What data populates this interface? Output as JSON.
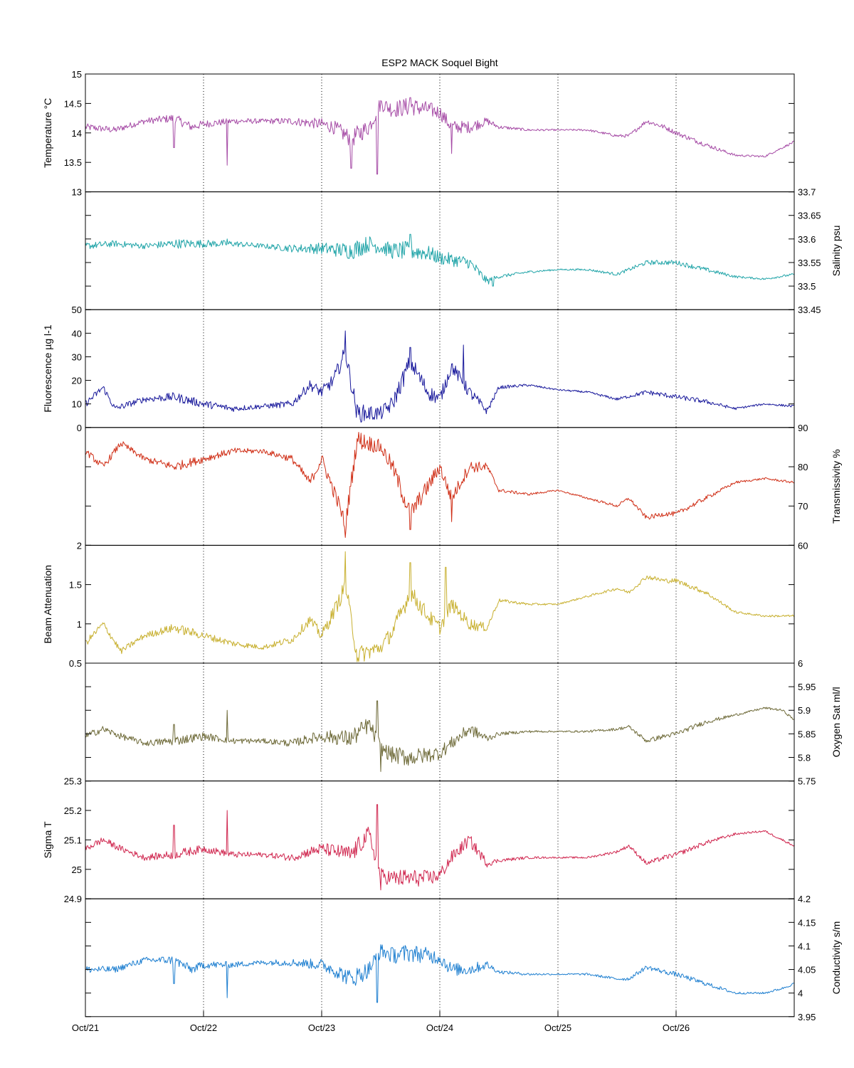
{
  "chart_data": {
    "title": "ESP2 MACK  Soquel Bight",
    "type": "line",
    "x_tick_labels": [
      "Oct/21",
      "Oct/22",
      "Oct/23",
      "Oct/24",
      "Oct/25",
      "Oct/26"
    ],
    "x_ticks_days": [
      21,
      22,
      23,
      24,
      25,
      26
    ],
    "xlim": [
      "2007-10-21",
      "2007-10-27"
    ],
    "grid": "vertical dotted lines at day ticks",
    "panels": [
      {
        "label": "Temperature °C",
        "axis_side": "left",
        "color": "#a64ca6",
        "ylim": [
          13,
          15
        ],
        "ticks": [
          13,
          13.5,
          14,
          14.5,
          15
        ],
        "tick_labels": [
          "13",
          "13.5",
          "14",
          "14.5",
          "15"
        ],
        "x_days": [
          21.0,
          21.25,
          21.5,
          21.75,
          21.9,
          22.0,
          22.25,
          22.5,
          22.75,
          23.0,
          23.1,
          23.25,
          23.4,
          23.5,
          23.6,
          23.75,
          23.9,
          24.0,
          24.1,
          24.25,
          24.4,
          24.5,
          24.75,
          25.0,
          25.25,
          25.5,
          25.6,
          25.75,
          25.9,
          26.0,
          26.25,
          26.5,
          26.75,
          26.9,
          27.0
        ],
        "values": [
          14.1,
          14.05,
          14.2,
          14.25,
          14.1,
          14.15,
          14.2,
          14.2,
          14.2,
          14.15,
          14.1,
          13.9,
          14.1,
          14.5,
          14.4,
          14.45,
          14.4,
          14.35,
          14.1,
          14.1,
          14.2,
          14.1,
          14.05,
          14.05,
          14.05,
          13.95,
          13.95,
          14.2,
          14.1,
          14.0,
          13.8,
          13.62,
          13.6,
          13.75,
          13.85
        ],
        "spikes": [
          [
            21.75,
            13.75
          ],
          [
            22.2,
            13.45
          ],
          [
            23.25,
            13.4
          ],
          [
            23.47,
            13.3
          ],
          [
            23.75,
            14.6
          ],
          [
            24.1,
            13.65
          ]
        ]
      },
      {
        "label": "Salinity psu",
        "axis_side": "right",
        "color": "#20a4a8",
        "ylim": [
          33.45,
          33.7
        ],
        "ticks": [
          33.45,
          33.5,
          33.55,
          33.6,
          33.65,
          33.7
        ],
        "tick_labels": [
          "33.45",
          "33.5",
          "33.55",
          "33.6",
          "33.65",
          "33.7"
        ],
        "x_days": [
          21.0,
          21.25,
          21.5,
          21.75,
          22.0,
          22.25,
          22.5,
          22.75,
          23.0,
          23.25,
          23.4,
          23.6,
          23.75,
          23.9,
          24.0,
          24.25,
          24.4,
          24.5,
          24.75,
          25.0,
          25.25,
          25.5,
          25.75,
          26.0,
          26.25,
          26.5,
          26.75,
          27.0
        ],
        "values": [
          33.585,
          33.59,
          33.585,
          33.59,
          33.59,
          33.59,
          33.585,
          33.58,
          33.58,
          33.575,
          33.59,
          33.575,
          33.575,
          33.57,
          33.56,
          33.55,
          33.51,
          33.52,
          33.53,
          33.535,
          33.535,
          33.525,
          33.55,
          33.55,
          33.535,
          33.52,
          33.515,
          33.525
        ],
        "spikes": [
          [
            22.2,
            33.6
          ],
          [
            23.75,
            33.61
          ],
          [
            24.45,
            33.5
          ]
        ]
      },
      {
        "label": "Fluorescence µg l-1",
        "axis_side": "left",
        "color": "#1a1a9c",
        "ylim": [
          0,
          50
        ],
        "ticks": [
          0,
          10,
          20,
          30,
          40,
          50
        ],
        "tick_labels": [
          "0",
          "10",
          "20",
          "30",
          "40",
          "50"
        ],
        "x_days": [
          21.0,
          21.15,
          21.25,
          21.5,
          21.75,
          22.0,
          22.25,
          22.5,
          22.75,
          22.9,
          23.0,
          23.1,
          23.2,
          23.3,
          23.5,
          23.6,
          23.75,
          23.9,
          24.0,
          24.1,
          24.25,
          24.4,
          24.5,
          24.75,
          25.0,
          25.25,
          25.5,
          25.75,
          26.0,
          26.25,
          26.5,
          26.75,
          27.0
        ],
        "values": [
          10,
          17,
          8,
          12,
          13,
          10,
          8,
          9,
          10,
          18,
          15,
          20,
          32,
          6,
          6,
          10,
          28,
          15,
          12,
          26,
          15,
          7,
          17,
          18,
          16,
          15,
          12,
          15,
          13,
          11,
          8,
          10,
          9
        ],
        "spikes": [
          [
            23.2,
            41
          ],
          [
            23.75,
            34
          ],
          [
            24.2,
            35
          ]
        ]
      },
      {
        "label": "Transmissivity %",
        "axis_side": "right",
        "color": "#d03018",
        "ylim": [
          60,
          90
        ],
        "ticks": [
          60,
          70,
          80,
          90
        ],
        "tick_labels": [
          "60",
          "70",
          "80",
          "90"
        ],
        "x_days": [
          21.0,
          21.15,
          21.3,
          21.5,
          21.75,
          22.0,
          22.25,
          22.5,
          22.75,
          22.9,
          23.0,
          23.15,
          23.2,
          23.3,
          23.5,
          23.6,
          23.75,
          23.9,
          24.0,
          24.1,
          24.25,
          24.4,
          24.5,
          24.75,
          25.0,
          25.25,
          25.5,
          25.6,
          25.75,
          25.9,
          26.0,
          26.25,
          26.5,
          26.75,
          27.0
        ],
        "values": [
          84,
          80,
          86,
          82,
          80,
          82,
          84,
          84,
          82,
          76,
          82,
          70,
          65,
          87,
          85,
          80,
          68,
          75,
          80,
          72,
          80,
          80,
          74,
          73,
          74,
          72,
          70,
          72,
          67,
          68,
          68,
          72,
          76,
          77,
          76
        ],
        "spikes": [
          [
            23.2,
            62
          ],
          [
            23.75,
            64
          ],
          [
            24.1,
            66
          ]
        ]
      },
      {
        "label": "Beam Attenuation",
        "axis_side": "left",
        "color": "#c8b030",
        "ylim": [
          0.5,
          2
        ],
        "ticks": [
          0.5,
          1,
          1.5,
          2
        ],
        "tick_labels": [
          "0.5",
          "1",
          "1.5",
          "2"
        ],
        "x_days": [
          21.0,
          21.15,
          21.3,
          21.5,
          21.75,
          22.0,
          22.25,
          22.5,
          22.75,
          22.9,
          23.0,
          23.15,
          23.2,
          23.3,
          23.5,
          23.6,
          23.75,
          23.9,
          24.0,
          24.1,
          24.25,
          24.4,
          24.5,
          24.75,
          25.0,
          25.25,
          25.5,
          25.6,
          25.75,
          25.9,
          26.0,
          26.25,
          26.5,
          26.75,
          27.0
        ],
        "values": [
          0.75,
          1.0,
          0.65,
          0.85,
          0.95,
          0.85,
          0.75,
          0.7,
          0.8,
          1.05,
          0.85,
          1.3,
          1.5,
          0.6,
          0.7,
          0.9,
          1.4,
          1.1,
          0.95,
          1.25,
          1.0,
          0.95,
          1.3,
          1.25,
          1.25,
          1.35,
          1.45,
          1.4,
          1.6,
          1.55,
          1.55,
          1.4,
          1.15,
          1.1,
          1.1
        ],
        "spikes": [
          [
            23.2,
            1.92
          ],
          [
            23.75,
            1.78
          ],
          [
            24.05,
            1.72
          ]
        ]
      },
      {
        "label": "Oxygen Sat ml/l",
        "axis_side": "right",
        "color": "#6e6a38",
        "ylim": [
          5.75,
          6
        ],
        "ticks": [
          5.75,
          5.8,
          5.85,
          5.9,
          5.95,
          6
        ],
        "tick_labels": [
          "5.75",
          "5.8",
          "5.85",
          "5.9",
          "5.95",
          "6"
        ],
        "x_days": [
          21.0,
          21.15,
          21.3,
          21.5,
          21.75,
          22.0,
          22.25,
          22.5,
          22.75,
          22.9,
          23.0,
          23.25,
          23.4,
          23.5,
          23.6,
          23.75,
          23.9,
          24.0,
          24.1,
          24.25,
          24.4,
          24.5,
          24.75,
          25.0,
          25.25,
          25.5,
          25.6,
          25.75,
          25.9,
          26.0,
          26.25,
          26.5,
          26.75,
          26.9,
          27.0
        ],
        "values": [
          5.845,
          5.86,
          5.845,
          5.83,
          5.835,
          5.845,
          5.835,
          5.835,
          5.83,
          5.84,
          5.845,
          5.84,
          5.87,
          5.82,
          5.805,
          5.8,
          5.805,
          5.81,
          5.83,
          5.86,
          5.84,
          5.85,
          5.855,
          5.855,
          5.855,
          5.86,
          5.865,
          5.835,
          5.845,
          5.85,
          5.875,
          5.89,
          5.905,
          5.9,
          5.88
        ],
        "spikes": [
          [
            21.75,
            5.87
          ],
          [
            22.2,
            5.9
          ],
          [
            23.47,
            5.92
          ],
          [
            23.5,
            5.77
          ]
        ]
      },
      {
        "label": "Sigma T",
        "axis_side": "left",
        "color": "#d02850",
        "ylim": [
          24.9,
          25.3
        ],
        "ticks": [
          24.9,
          25,
          25.1,
          25.2,
          25.3
        ],
        "tick_labels": [
          "24.9",
          "25",
          "25.1",
          "25.2",
          "25.3"
        ],
        "x_days": [
          21.0,
          21.15,
          21.3,
          21.5,
          21.75,
          22.0,
          22.25,
          22.5,
          22.75,
          22.9,
          23.0,
          23.25,
          23.4,
          23.5,
          23.6,
          23.75,
          23.9,
          24.0,
          24.1,
          24.25,
          24.4,
          24.5,
          24.75,
          25.0,
          25.25,
          25.5,
          25.6,
          25.75,
          25.9,
          26.0,
          26.25,
          26.5,
          26.75,
          26.9,
          27.0
        ],
        "values": [
          25.07,
          25.1,
          25.07,
          25.04,
          25.05,
          25.07,
          25.05,
          25.05,
          25.04,
          25.06,
          25.07,
          25.05,
          25.12,
          24.98,
          24.97,
          24.97,
          24.97,
          24.98,
          25.04,
          25.1,
          25.02,
          25.03,
          25.04,
          25.04,
          25.04,
          25.06,
          25.08,
          25.02,
          25.04,
          25.05,
          25.09,
          25.12,
          25.13,
          25.1,
          25.08
        ],
        "spikes": [
          [
            21.75,
            25.15
          ],
          [
            22.2,
            25.2
          ],
          [
            23.47,
            25.22
          ],
          [
            23.5,
            24.93
          ]
        ]
      },
      {
        "label": "Conductivity s/m",
        "axis_side": "right",
        "color": "#1e7fd0",
        "ylim": [
          3.95,
          4.2
        ],
        "ticks": [
          3.95,
          4,
          4.05,
          4.1,
          4.15,
          4.2
        ],
        "tick_labels": [
          "3.95",
          "4",
          "4.05",
          "4.1",
          "4.15",
          "4.2"
        ],
        "x_days": [
          21.0,
          21.25,
          21.5,
          21.75,
          21.9,
          22.0,
          22.25,
          22.5,
          22.75,
          23.0,
          23.1,
          23.25,
          23.4,
          23.5,
          23.6,
          23.75,
          23.9,
          24.0,
          24.1,
          24.25,
          24.4,
          24.5,
          24.75,
          25.0,
          25.25,
          25.5,
          25.6,
          25.75,
          25.9,
          26.0,
          26.25,
          26.5,
          26.75,
          26.9,
          27.0
        ],
        "values": [
          4.05,
          4.05,
          4.07,
          4.07,
          4.05,
          4.06,
          4.06,
          4.065,
          4.065,
          4.06,
          4.05,
          4.03,
          4.05,
          4.09,
          4.08,
          4.085,
          4.08,
          4.075,
          4.05,
          4.05,
          4.06,
          4.045,
          4.04,
          4.04,
          4.04,
          4.03,
          4.03,
          4.055,
          4.045,
          4.04,
          4.02,
          4.0,
          4.0,
          4.01,
          4.02
        ],
        "spikes": [
          [
            21.75,
            4.02
          ],
          [
            22.2,
            3.99
          ],
          [
            23.47,
            3.98
          ],
          [
            23.75,
            4.09
          ]
        ]
      }
    ]
  }
}
